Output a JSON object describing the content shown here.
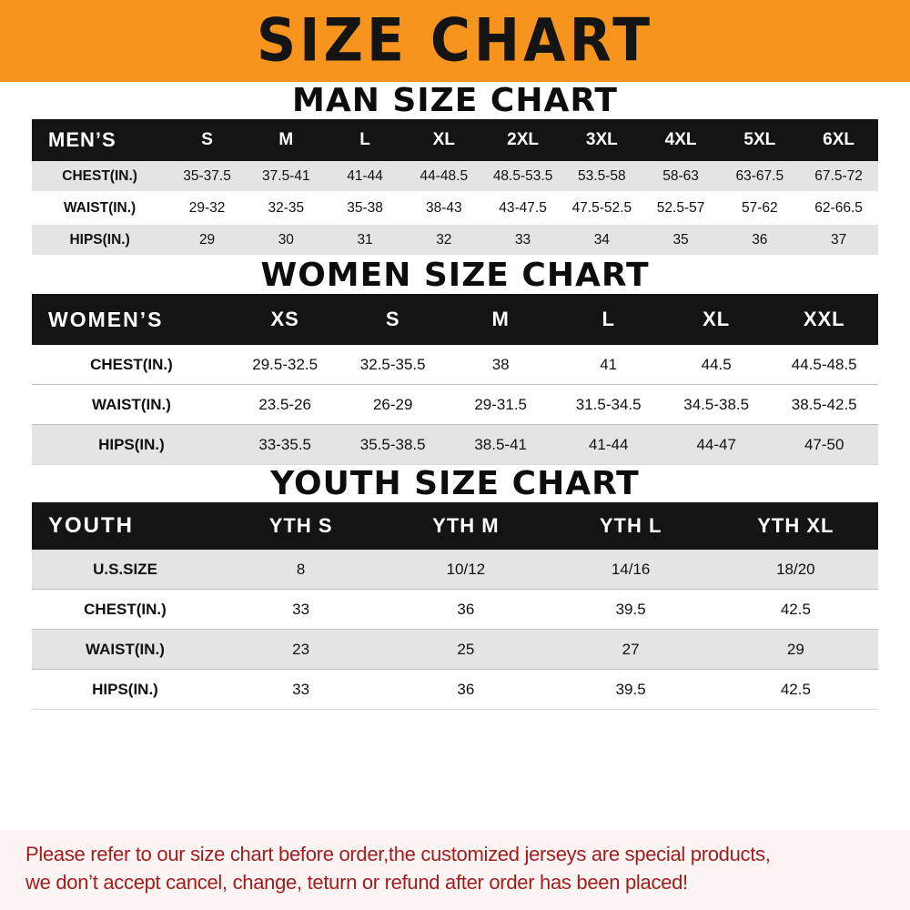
{
  "banner": {
    "title": "SIZE CHART"
  },
  "colors": {
    "banner_bg": "#f7941e",
    "table_header_bg": "#141414",
    "table_header_text": "#ffffff",
    "row_shade": "#e4e4e4",
    "footer_text": "#a31d1d"
  },
  "men": {
    "heading": "MAN SIZE CHART",
    "table": {
      "header": [
        "MEN’S",
        "S",
        "M",
        "L",
        "XL",
        "2XL",
        "3XL",
        "4XL",
        "5XL",
        "6XL"
      ],
      "rows": [
        [
          "CHEST(IN.)",
          "35-37.5",
          "37.5-41",
          "41-44",
          "44-48.5",
          "48.5-53.5",
          "53.5-58",
          "58-63",
          "63-67.5",
          "67.5-72"
        ],
        [
          "WAIST(IN.)",
          "29-32",
          "32-35",
          "35-38",
          "38-43",
          "43-47.5",
          "47.5-52.5",
          "52.5-57",
          "57-62",
          "62-66.5"
        ],
        [
          "HIPS(IN.)",
          "29",
          "30",
          "31",
          "32",
          "33",
          "34",
          "35",
          "36",
          "37"
        ]
      ]
    }
  },
  "women": {
    "heading": "WOMEN SIZE CHART",
    "table": {
      "header": [
        "WOMEN’S",
        "XS",
        "S",
        "M",
        "L",
        "XL",
        "XXL"
      ],
      "rows": [
        [
          "CHEST(IN.)",
          "29.5-32.5",
          "32.5-35.5",
          "38",
          "41",
          "44.5",
          "44.5-48.5"
        ],
        [
          "WAIST(IN.)",
          "23.5-26",
          "26-29",
          "29-31.5",
          "31.5-34.5",
          "34.5-38.5",
          "38.5-42.5"
        ],
        [
          "HIPS(IN.)",
          "33-35.5",
          "35.5-38.5",
          "38.5-41",
          "41-44",
          "44-47",
          "47-50"
        ]
      ]
    }
  },
  "youth": {
    "heading": "YOUTH SIZE CHART",
    "table": {
      "header": [
        "YOUTH",
        "YTH S",
        "YTH M",
        "YTH L",
        "YTH XL"
      ],
      "rows": [
        [
          "U.S.SIZE",
          "8",
          "10/12",
          "14/16",
          "18/20"
        ],
        [
          "CHEST(IN.)",
          "33",
          "36",
          "39.5",
          "42.5"
        ],
        [
          "WAIST(IN.)",
          "23",
          "25",
          "27",
          "29"
        ],
        [
          "HIPS(IN.)",
          "33",
          "36",
          "39.5",
          "42.5"
        ]
      ]
    }
  },
  "footer": {
    "line1": "Please refer to our size chart before order,the customized jerseys are special products,",
    "line2": "we don’t accept cancel, change, teturn or refund after order has been placed!"
  }
}
